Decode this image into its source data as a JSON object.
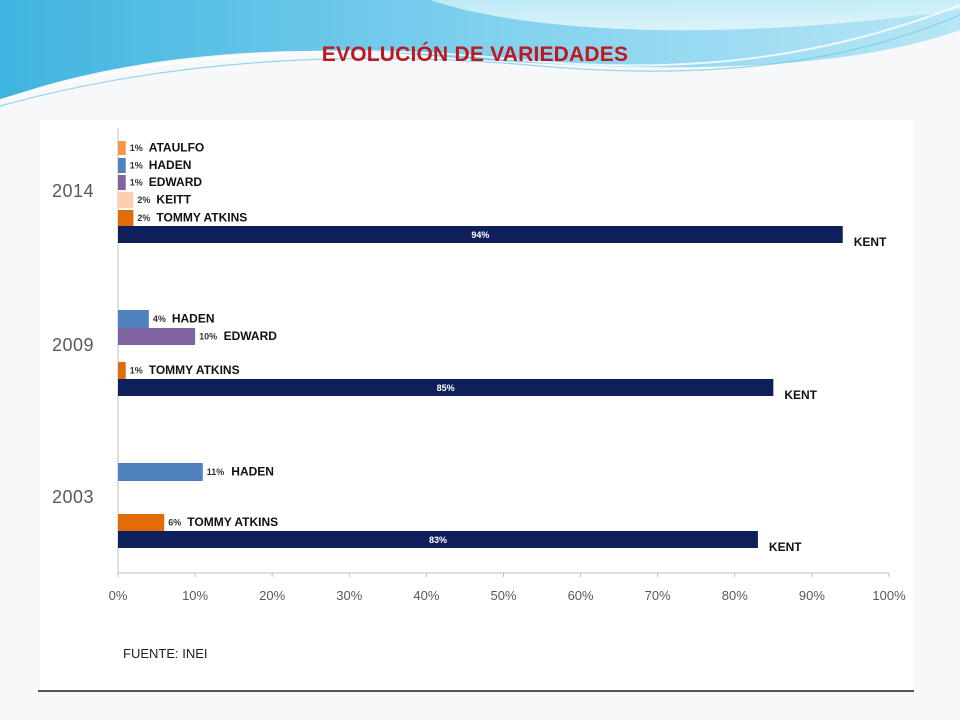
{
  "slide": {
    "title": "EVOLUCIÓN DE VARIEDADES",
    "source": "FUENTE: INEI"
  },
  "colors": {
    "title": "#c0161c",
    "kent": "#0f1f5c",
    "haden": "#4f81bd",
    "edward": "#8064a2",
    "tommy_atkins": "#e36c0a",
    "keitt": "#fbcfb0",
    "ataulfo": "#f79646"
  },
  "chart_data": {
    "type": "bar",
    "orientation": "horizontal",
    "title": "",
    "xlabel": "",
    "ylabel": "",
    "xlim": [
      0,
      100
    ],
    "x_ticks": [
      "0%",
      "10%",
      "20%",
      "30%",
      "40%",
      "50%",
      "60%",
      "70%",
      "80%",
      "90%",
      "100%"
    ],
    "grid": false,
    "legend": "none",
    "groups": [
      {
        "year": "2014",
        "bars": [
          {
            "variety": "ATAULFO",
            "value": 1,
            "label": "1%",
            "color": "#f79646"
          },
          {
            "variety": "HADEN",
            "value": 1,
            "label": "1%",
            "color": "#4f81bd"
          },
          {
            "variety": "EDWARD",
            "value": 1,
            "label": "1%",
            "color": "#8064a2"
          },
          {
            "variety": "KEITT",
            "value": 2,
            "label": "2%",
            "color": "#fbcfb0"
          },
          {
            "variety": "TOMMY ATKINS",
            "value": 2,
            "label": "2%",
            "color": "#e36c0a"
          },
          {
            "variety": "KENT",
            "value": 94,
            "label": "94%",
            "color": "#0f1f5c"
          }
        ]
      },
      {
        "year": "2009",
        "bars": [
          {
            "variety": "HADEN",
            "value": 4,
            "label": "4%",
            "color": "#4f81bd"
          },
          {
            "variety": "EDWARD",
            "value": 10,
            "label": "10%",
            "color": "#8064a2"
          },
          {
            "variety": "TOMMY ATKINS",
            "value": 1,
            "label": "1%",
            "color": "#e36c0a"
          },
          {
            "variety": "KENT",
            "value": 85,
            "label": "85%",
            "color": "#0f1f5c"
          }
        ]
      },
      {
        "year": "2003",
        "bars": [
          {
            "variety": "HADEN",
            "value": 11,
            "label": "11%",
            "color": "#4f81bd"
          },
          {
            "variety": "TOMMY ATKINS",
            "value": 6,
            "label": "6%",
            "color": "#e36c0a"
          },
          {
            "variety": "KENT",
            "value": 83,
            "label": "83%",
            "color": "#0f1f5c"
          }
        ]
      }
    ]
  }
}
